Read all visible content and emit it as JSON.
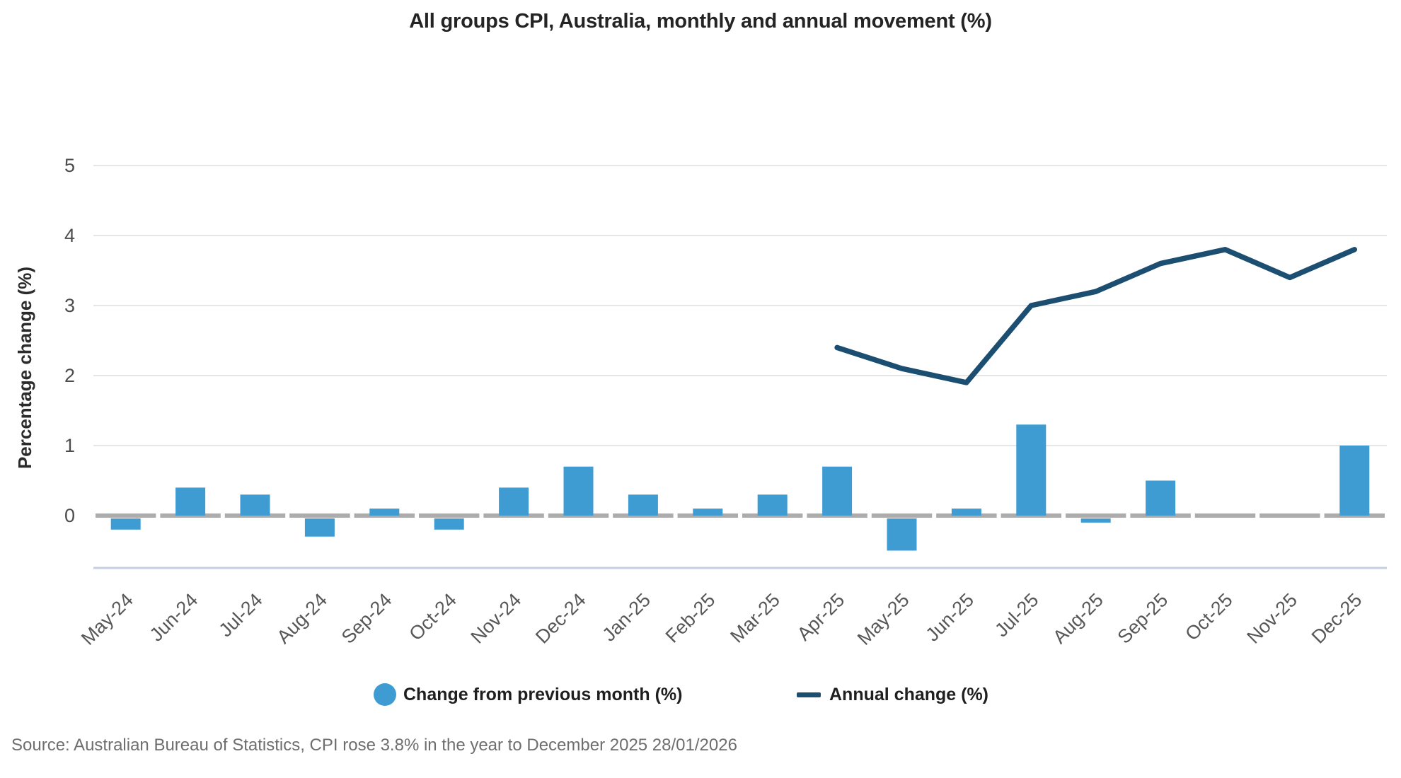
{
  "chart_data": {
    "type": "combo",
    "title": "All groups CPI, Australia, monthly and annual movement (%)",
    "xlabel": "",
    "ylabel": "Percentage change (%)",
    "categories": [
      "May-24",
      "Jun-24",
      "Jul-24",
      "Aug-24",
      "Sep-24",
      "Oct-24",
      "Nov-24",
      "Dec-24",
      "Jan-25",
      "Feb-25",
      "Mar-25",
      "Apr-25",
      "May-25",
      "Jun-25",
      "Jul-25",
      "Aug-25",
      "Sep-25",
      "Oct-25",
      "Nov-25",
      "Dec-25"
    ],
    "series": [
      {
        "name": "Change from previous month (%)",
        "type": "bar",
        "color": "#3E9CD3",
        "values": [
          -0.2,
          0.4,
          0.3,
          -0.3,
          0.1,
          -0.2,
          0.4,
          0.7,
          0.3,
          0.1,
          0.3,
          0.7,
          -0.5,
          0.1,
          1.3,
          -0.1,
          0.5,
          0.0,
          0.0,
          1.0
        ]
      },
      {
        "name": "Annual change (%)",
        "type": "line",
        "color": "#1B4E71",
        "values": [
          null,
          null,
          null,
          null,
          null,
          null,
          null,
          null,
          null,
          null,
          null,
          2.4,
          2.1,
          1.9,
          3.0,
          3.2,
          3.6,
          3.8,
          3.4,
          3.8
        ]
      }
    ],
    "yticks": [
      0,
      1,
      2,
      3,
      4,
      5
    ],
    "ylim": [
      -0.75,
      5.45
    ],
    "grid": true,
    "legend_position": "bottom"
  },
  "source": {
    "text": "Source: Australian Bureau of Statistics, CPI rose 3.8% in the year to December 2025 28/01/2026"
  },
  "colors": {
    "bar": "#3E9CD3",
    "line": "#1B4E71",
    "gridline": "#E6E6E6",
    "zero_line": "#ACACAC",
    "axis_bottom_line": "#C4CFE4",
    "y_tick_label": "#4D4D4D",
    "x_tick_label": "#575757",
    "axis_title": "#2B2B2B",
    "title": "#242424",
    "source_text": "#6E6E6E"
  }
}
